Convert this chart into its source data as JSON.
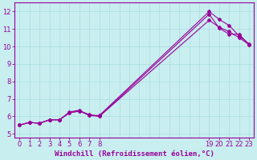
{
  "title": "",
  "xlabel": "Windchill (Refroidissement éolien,°C)",
  "ylabel": "",
  "background_color": "#c8eef0",
  "grid_color": "#aadddd",
  "line_color": "#990099",
  "xlim": [
    -0.5,
    23.5
  ],
  "ylim": [
    4.8,
    12.5
  ],
  "xtick_positions": [
    0,
    1,
    2,
    3,
    4,
    5,
    6,
    7,
    8,
    19,
    20,
    21,
    22,
    23
  ],
  "xtick_labels": [
    "0",
    "1",
    "2",
    "3",
    "4",
    "5",
    "6",
    "7",
    "8",
    "19",
    "20",
    "21",
    "22",
    "23"
  ],
  "ytick_positions": [
    5,
    6,
    7,
    8,
    9,
    10,
    11,
    12
  ],
  "ytick_labels": [
    "5",
    "6",
    "7",
    "8",
    "9",
    "10",
    "11",
    "12"
  ],
  "grid_xticks": [
    0,
    1,
    2,
    3,
    4,
    5,
    6,
    7,
    8,
    9,
    10,
    11,
    12,
    13,
    14,
    15,
    16,
    17,
    18,
    19,
    20,
    21,
    22,
    23
  ],
  "grid_yticks": [
    5,
    6,
    7,
    8,
    9,
    10,
    11,
    12
  ],
  "lines": [
    {
      "x": [
        0,
        1,
        2,
        3,
        4,
        5,
        6,
        7,
        8,
        19,
        20,
        21,
        22,
        23
      ],
      "y": [
        5.5,
        5.65,
        5.6,
        5.8,
        5.8,
        6.2,
        6.3,
        6.05,
        6.0,
        11.85,
        11.05,
        10.7,
        10.7,
        10.1
      ]
    },
    {
      "x": [
        0,
        1,
        2,
        3,
        4,
        5,
        6,
        7,
        8,
        19,
        20,
        21,
        22,
        23
      ],
      "y": [
        5.5,
        5.65,
        5.6,
        5.8,
        5.8,
        6.2,
        6.3,
        6.1,
        6.0,
        11.5,
        11.1,
        10.85,
        10.5,
        10.1
      ]
    },
    {
      "x": [
        0,
        1,
        2,
        3,
        4,
        5,
        6,
        7,
        8,
        19,
        20,
        21,
        22,
        23
      ],
      "y": [
        5.5,
        5.65,
        5.6,
        5.8,
        5.8,
        6.25,
        6.35,
        6.05,
        6.05,
        12.0,
        11.55,
        11.2,
        10.6,
        10.15
      ]
    }
  ],
  "marker": "D",
  "markersize": 2.0,
  "linewidth": 0.8,
  "xlabel_fontsize": 6.5,
  "tick_fontsize": 6
}
